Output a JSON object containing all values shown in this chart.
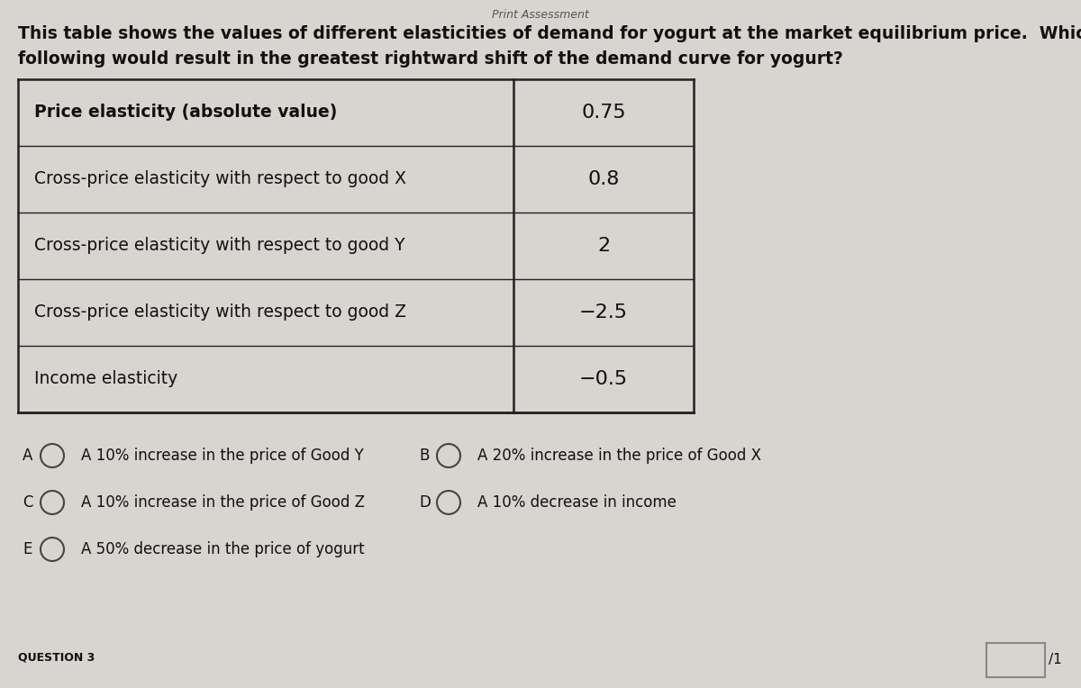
{
  "title_top": "Print Assessment",
  "question_text_line1": "This table shows the values of different elasticities of demand for yogurt at the market equilibrium price.  Which of the",
  "question_text_line2": "following would result in the greatest rightward shift of the demand curve for yogurt?",
  "table_rows": [
    {
      "label": "Price elasticity (absolute value)",
      "value": "0.75",
      "bold": true,
      "italic": false
    },
    {
      "label": "Cross-price elasticity with respect to good X",
      "value": "0.8",
      "bold": false,
      "italic": false
    },
    {
      "label": "Cross-price elasticity with respect to good Y",
      "value": "2",
      "bold": false,
      "italic": false
    },
    {
      "label": "Cross-price elasticity with respect to good Z",
      "value": "−2.5",
      "bold": false,
      "italic": false
    },
    {
      "label": "Income elasticity",
      "value": "−0.5",
      "bold": false,
      "italic": false
    }
  ],
  "answer_options": [
    {
      "letter": "A",
      "text": "A 10% increase in the price of Good Y",
      "row": 0,
      "col": 0
    },
    {
      "letter": "B",
      "text": "A 20% increase in the price of Good X",
      "row": 0,
      "col": 1
    },
    {
      "letter": "C",
      "text": "A 10% increase in the price of Good Z",
      "row": 1,
      "col": 0
    },
    {
      "letter": "D",
      "text": "A 10% decrease in income",
      "row": 1,
      "col": 1
    },
    {
      "letter": "E",
      "text": "A 50% decrease in the price of yogurt",
      "row": 2,
      "col": 0
    }
  ],
  "question_number": "QUESTION 3",
  "score_box_text": "/1",
  "bg_color": "#d8d4cf",
  "table_bg": "#e8e4df",
  "table_border_color": "#222222",
  "text_color": "#111111",
  "title_font_size": 9,
  "question_font_size": 13.5,
  "table_label_font_size": 13.5,
  "table_value_font_size": 16,
  "answer_font_size": 12,
  "question_number_font_size": 9
}
